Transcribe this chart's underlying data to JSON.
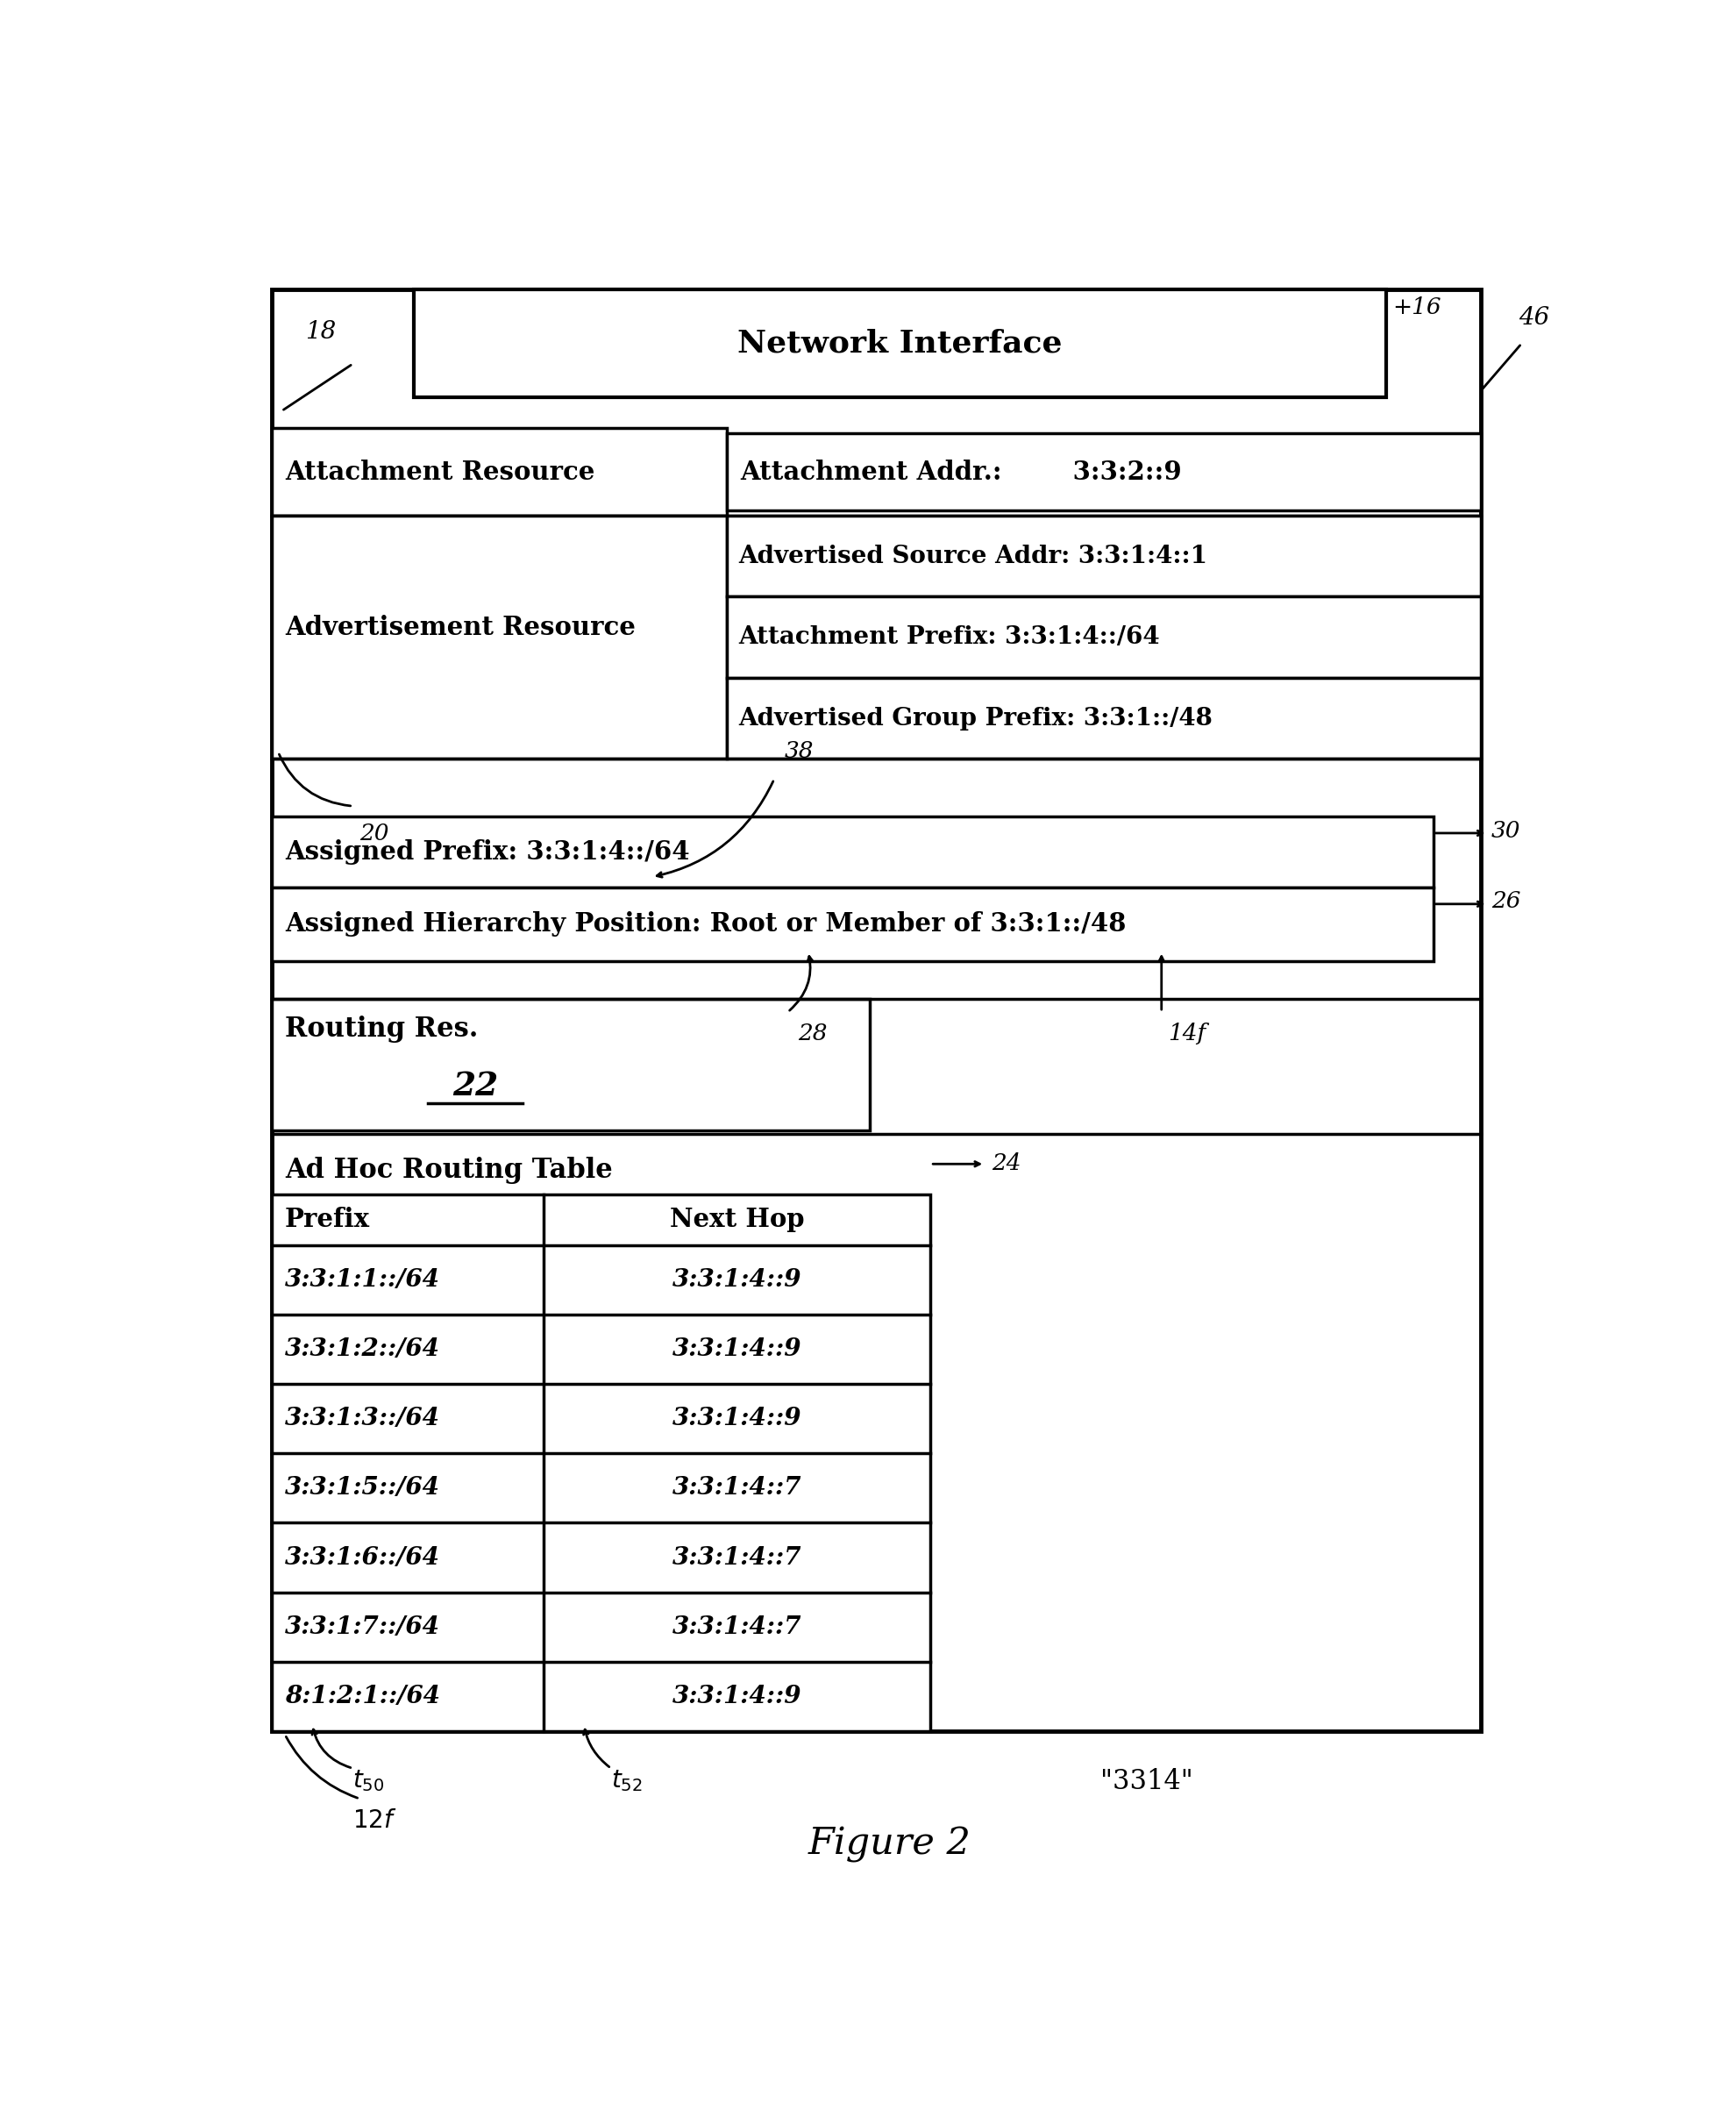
{
  "bg_color": "#ffffff",
  "network_interface_text": "Network Interface",
  "label_16": "+16",
  "label_18": "18",
  "label_46": "46",
  "attachment_resource_text": "Attachment Resource",
  "attachment_addr_text": "Attachment Addr.:        3:3:2::9",
  "advertisement_resource_text": "Advertisement Resource",
  "adv_source_addr_text": "Advertised Source Addr: 3:3:1:4::1",
  "attachment_prefix_text": "Attachment Prefix: 3:3:1:4::/64",
  "adv_group_prefix_text": "Advertised Group Prefix: 3:3:1::/48",
  "label_20": "20",
  "label_38": "38",
  "label_30": "30",
  "label_26": "26",
  "assigned_prefix_text": "Assigned Prefix: 3:3:1:4::/64",
  "assigned_hierarchy_text": "Assigned Hierarchy Position: Root or Member of 3:3:1::/48",
  "label_28": "28",
  "label_14f": "14f",
  "routing_res_text": "Routing Res.",
  "label_22": "22",
  "adhoc_routing_table_text": "Ad Hoc Routing Table",
  "label_24": "24",
  "prefix_header": "Prefix",
  "nexthop_header": "Next Hop",
  "table_rows": [
    [
      "3:3:1:1::/64",
      "3:3:1:4::9"
    ],
    [
      "3:3:1:2::/64",
      "3:3:1:4::9"
    ],
    [
      "3:3:1:3::/64",
      "3:3:1:4::9"
    ],
    [
      "3:3:1:5::/64",
      "3:3:1:4::7"
    ],
    [
      "3:3:1:6::/64",
      "3:3:1:4::7"
    ],
    [
      "3:3:1:7::/64",
      "3:3:1:4::7"
    ],
    [
      "8:1:2:1::/64",
      "3:3:1:4::9"
    ]
  ],
  "label_50": "50",
  "label_52": "52",
  "label_3314": "\"3314\"",
  "label_12f": "12f",
  "figure_caption": "Figure 2"
}
